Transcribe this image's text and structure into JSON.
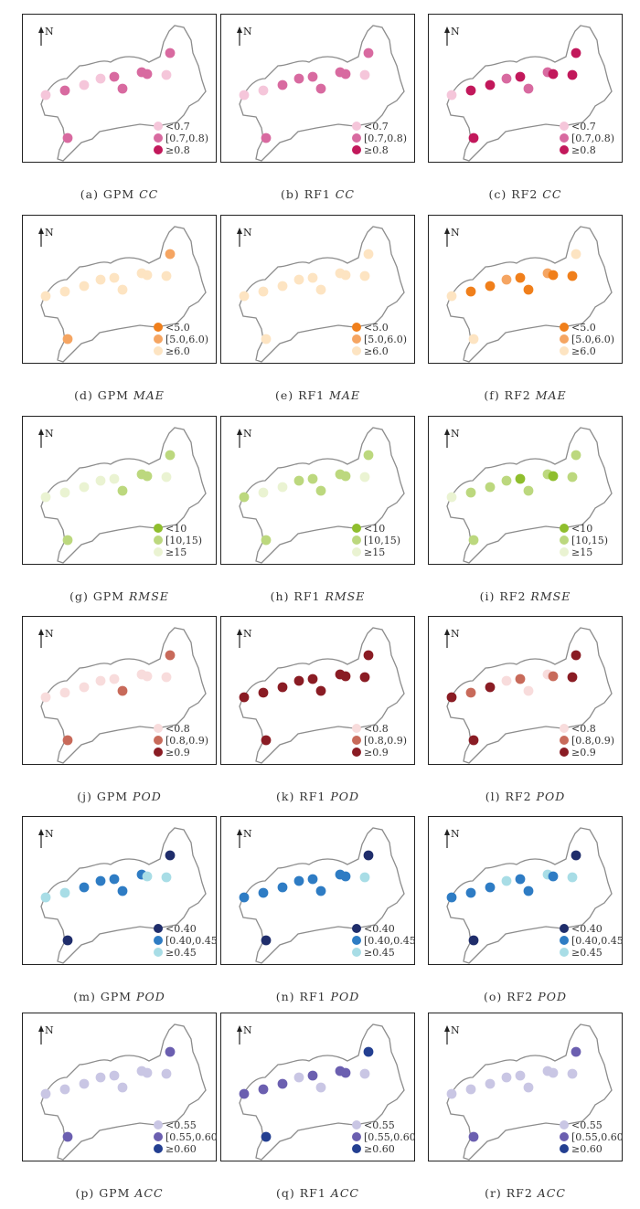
{
  "north_label": "N",
  "rows": [
    {
      "metric": "CC",
      "colors": [
        "#f5c6da",
        "#d86aa0",
        "#c2185b"
      ],
      "legend": [
        "<0.7",
        "[0.7,0.8)",
        "≥0.8"
      ],
      "panels": [
        {
          "prefix": "(a) GPM ",
          "metric": "CC",
          "classes": [
            0,
            1,
            0,
            0,
            1,
            1,
            1,
            1,
            0,
            1
          ]
        },
        {
          "prefix": "(b) RF1 ",
          "metric": "CC",
          "classes": [
            0,
            0,
            1,
            1,
            1,
            1,
            1,
            1,
            0,
            1
          ]
        },
        {
          "prefix": "(c) RF2 ",
          "metric": "CC",
          "classes": [
            0,
            2,
            2,
            1,
            2,
            1,
            1,
            2,
            2,
            2
          ]
        }
      ]
    },
    {
      "metric": "MAE",
      "colors": [
        "#f07f1b",
        "#f5a562",
        "#fde4c2"
      ],
      "legend": [
        "<5.0",
        "[5.0,6.0)",
        "≥6.0"
      ],
      "panels": [
        {
          "prefix": "(d) GPM ",
          "metric": "MAE",
          "classes": [
            2,
            2,
            2,
            2,
            2,
            2,
            2,
            2,
            2,
            1
          ]
        },
        {
          "prefix": "(e) RF1 ",
          "metric": "MAE",
          "classes": [
            2,
            2,
            2,
            2,
            2,
            2,
            2,
            2,
            2,
            2
          ]
        },
        {
          "prefix": "(f) RF2 ",
          "metric": "MAE",
          "classes": [
            2,
            0,
            0,
            1,
            0,
            0,
            1,
            0,
            0,
            2
          ]
        }
      ]
    },
    {
      "metric": "RMSE",
      "colors": [
        "#8fbe2d",
        "#bcd87e",
        "#eaf3d2"
      ],
      "legend": [
        "<10",
        "[10,15)",
        "≥15"
      ],
      "panels": [
        {
          "prefix": "(g) GPM ",
          "metric": "RMSE",
          "classes": [
            2,
            2,
            2,
            2,
            2,
            1,
            1,
            1,
            2,
            1
          ]
        },
        {
          "prefix": "(h) RF1 ",
          "metric": "RMSE",
          "classes": [
            1,
            2,
            2,
            1,
            1,
            1,
            1,
            1,
            2,
            1
          ]
        },
        {
          "prefix": "(i) RF2 ",
          "metric": "RMSE",
          "classes": [
            2,
            1,
            1,
            1,
            0,
            1,
            1,
            0,
            1,
            1
          ]
        }
      ]
    },
    {
      "metric": "POD",
      "colors": [
        "#f8dcdc",
        "#c86a5a",
        "#8a1c24"
      ],
      "legend": [
        "<0.8",
        "[0.8,0.9)",
        "≥0.9"
      ],
      "panels": [
        {
          "prefix": "(j) GPM ",
          "metric": "POD",
          "classes": [
            0,
            0,
            0,
            0,
            0,
            1,
            0,
            0,
            0,
            1
          ]
        },
        {
          "prefix": "(k) RF1 ",
          "metric": "POD",
          "classes": [
            2,
            2,
            2,
            2,
            2,
            2,
            2,
            2,
            2,
            2
          ]
        },
        {
          "prefix": "(l) RF2 ",
          "metric": "POD",
          "classes": [
            2,
            1,
            2,
            0,
            1,
            0,
            0,
            1,
            2,
            2
          ]
        }
      ]
    },
    {
      "metric": "POD",
      "colors": [
        "#1f2d6b",
        "#2e7cc4",
        "#a8dde6"
      ],
      "legend": [
        "<0.40",
        "[0.40,0.45)",
        "≥0.45"
      ],
      "panels": [
        {
          "prefix": "(m) GPM ",
          "metric": "POD",
          "classes": [
            2,
            2,
            1,
            1,
            1,
            1,
            1,
            2,
            2,
            0
          ]
        },
        {
          "prefix": "(n) RF1 ",
          "metric": "POD",
          "classes": [
            1,
            1,
            1,
            1,
            1,
            1,
            1,
            1,
            2,
            0
          ]
        },
        {
          "prefix": "(o) RF2 ",
          "metric": "POD",
          "classes": [
            1,
            1,
            1,
            2,
            1,
            1,
            2,
            1,
            2,
            0
          ]
        }
      ]
    },
    {
      "metric": "ACC",
      "colors": [
        "#c9c6e4",
        "#6b5fb0",
        "#233f91"
      ],
      "legend": [
        "<0.55",
        "[0.55,0.60)",
        "≥0.60"
      ],
      "panels": [
        {
          "prefix": "(p) GPM ",
          "metric": "ACC",
          "classes": [
            0,
            0,
            0,
            0,
            0,
            0,
            0,
            0,
            0,
            1
          ]
        },
        {
          "prefix": "(q) RF1 ",
          "metric": "ACC",
          "classes": [
            1,
            1,
            1,
            0,
            1,
            0,
            1,
            1,
            0,
            2
          ]
        },
        {
          "prefix": "(r) RF2 ",
          "metric": "ACC",
          "classes": [
            0,
            0,
            0,
            0,
            0,
            0,
            0,
            0,
            0,
            1
          ]
        }
      ]
    }
  ]
}
